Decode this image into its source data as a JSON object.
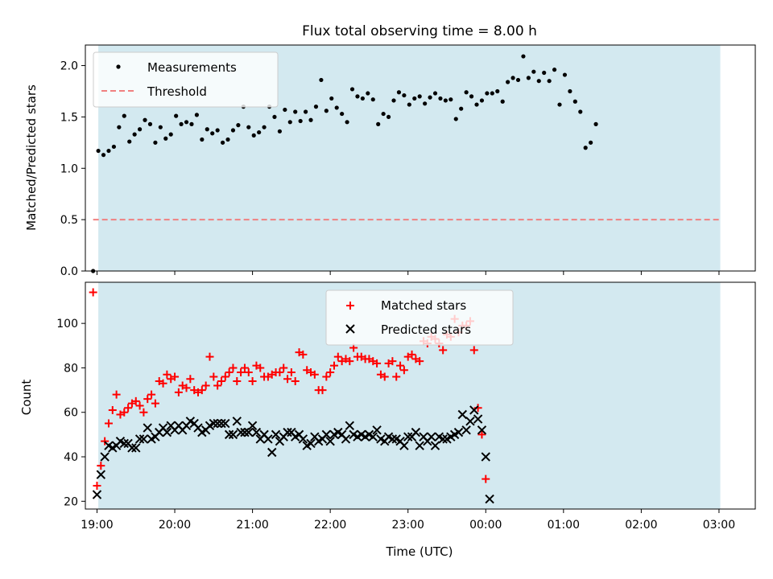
{
  "chart_data": [
    {
      "type": "scatter",
      "title": "Flux total observing time = 8.00 h",
      "xlabel": "",
      "ylabel": "Matched/Predicted stars",
      "ylim": [
        0,
        2.2
      ],
      "xlim": [
        "18:51",
        "03:28"
      ],
      "yticks": [
        "0.0",
        "0.5",
        "1.0",
        "1.5",
        "2.0"
      ],
      "shaded_region": {
        "from": "19:01",
        "to": "03:01",
        "color": "#d3e9f0"
      },
      "legend": {
        "position": "top-left",
        "entries": [
          "Measurements",
          "Threshold"
        ]
      },
      "series": [
        {
          "name": "Measurements",
          "color": "#000000",
          "marker": "dot",
          "x_start": "18:57",
          "x_step_min": 4,
          "values": [
            0.0,
            1.17,
            1.13,
            1.17,
            1.21,
            1.4,
            1.51,
            1.26,
            1.33,
            1.38,
            1.47,
            1.43,
            1.25,
            1.4,
            1.29,
            1.33,
            1.51,
            1.43,
            1.45,
            1.43,
            1.52,
            1.28,
            1.38,
            1.34,
            1.37,
            1.25,
            1.28,
            1.37,
            1.42,
            1.6,
            1.4,
            1.32,
            1.35,
            1.4,
            1.6,
            1.5,
            1.36,
            1.57,
            1.45,
            1.55,
            1.46,
            1.55,
            1.47,
            1.6,
            1.86,
            1.56,
            1.68,
            1.59,
            1.53,
            1.45,
            1.77,
            1.7,
            1.68,
            1.73,
            1.67,
            1.43,
            1.53,
            1.5,
            1.66,
            1.74,
            1.71,
            1.62,
            1.68,
            1.7,
            1.63,
            1.69,
            1.73,
            1.68,
            1.66,
            1.67,
            1.48,
            1.58,
            1.74,
            1.7,
            1.62,
            1.66,
            1.73,
            1.73,
            1.75,
            1.65,
            1.84,
            1.88,
            1.86,
            2.09,
            1.88,
            1.94,
            1.85,
            1.93,
            1.85,
            1.96,
            1.62,
            1.91,
            1.75,
            1.65,
            1.55,
            1.2,
            1.25,
            1.43
          ]
        },
        {
          "name": "Threshold",
          "color": "#f08080",
          "style": "dashed",
          "x": [
            "18:57",
            "03:01"
          ],
          "values": [
            0.5,
            0.5
          ]
        }
      ]
    },
    {
      "type": "scatter",
      "title": "",
      "xlabel": "Time (UTC)",
      "ylabel": "Count",
      "ylim": [
        16.5,
        118.5
      ],
      "xlim": [
        "18:51",
        "03:28"
      ],
      "yticks": [
        "20",
        "40",
        "60",
        "80",
        "100"
      ],
      "xticks": [
        "19:00",
        "20:00",
        "21:00",
        "22:00",
        "23:00",
        "00:00",
        "01:00",
        "02:00",
        "03:00"
      ],
      "shaded_region": {
        "from": "19:01",
        "to": "03:01",
        "color": "#d3e9f0"
      },
      "legend": {
        "position": "top-center",
        "entries": [
          "Matched stars",
          "Predicted stars"
        ]
      },
      "series": [
        {
          "name": "Matched stars",
          "color": "#ff0000",
          "marker": "plus",
          "x_start": "18:57",
          "x_step_min": 3,
          "values": [
            114,
            27,
            36,
            47,
            55,
            61,
            68,
            59,
            60,
            62,
            64,
            65,
            63,
            60,
            66,
            68,
            64,
            74,
            73,
            77,
            75,
            76,
            69,
            72,
            71,
            75,
            70,
            69,
            70,
            72,
            85,
            76,
            72,
            74,
            76,
            78,
            80,
            74,
            78,
            80,
            78,
            74,
            81,
            80,
            76,
            76,
            77,
            78,
            78,
            80,
            75,
            78,
            74,
            87,
            86,
            79,
            78,
            77,
            70,
            70,
            76,
            78,
            81,
            85,
            83,
            84,
            83,
            89,
            85,
            85,
            84,
            84,
            83,
            82,
            77,
            76,
            82,
            83,
            76,
            81,
            79,
            85,
            86,
            84,
            83,
            92,
            91,
            94,
            93,
            91,
            88,
            95,
            94,
            102,
            96,
            99,
            99,
            101,
            88,
            62,
            50,
            30
          ]
        },
        {
          "name": "Predicted stars",
          "color": "#000000",
          "marker": "x",
          "x_start": "19:00",
          "x_step_min": 3,
          "values": [
            23,
            32,
            40,
            45,
            44,
            45,
            47,
            46,
            46,
            44,
            44,
            48,
            48,
            53,
            48,
            49,
            51,
            53,
            51,
            54,
            52,
            54,
            52,
            54,
            56,
            55,
            53,
            51,
            52,
            54,
            55,
            55,
            55,
            55,
            50,
            50,
            56,
            51,
            51,
            51,
            54,
            51,
            48,
            50,
            48,
            42,
            50,
            47,
            49,
            51,
            51,
            49,
            50,
            48,
            45,
            46,
            49,
            47,
            48,
            50,
            47,
            50,
            51,
            50,
            48,
            54,
            50,
            49,
            50,
            49,
            50,
            49,
            52,
            48,
            47,
            49,
            48,
            48,
            47,
            45,
            49,
            49,
            51,
            45,
            49,
            47,
            49,
            45,
            49,
            48,
            48,
            49,
            50,
            51,
            59,
            52,
            56,
            61,
            57,
            52,
            40,
            21
          ]
        }
      ]
    }
  ]
}
